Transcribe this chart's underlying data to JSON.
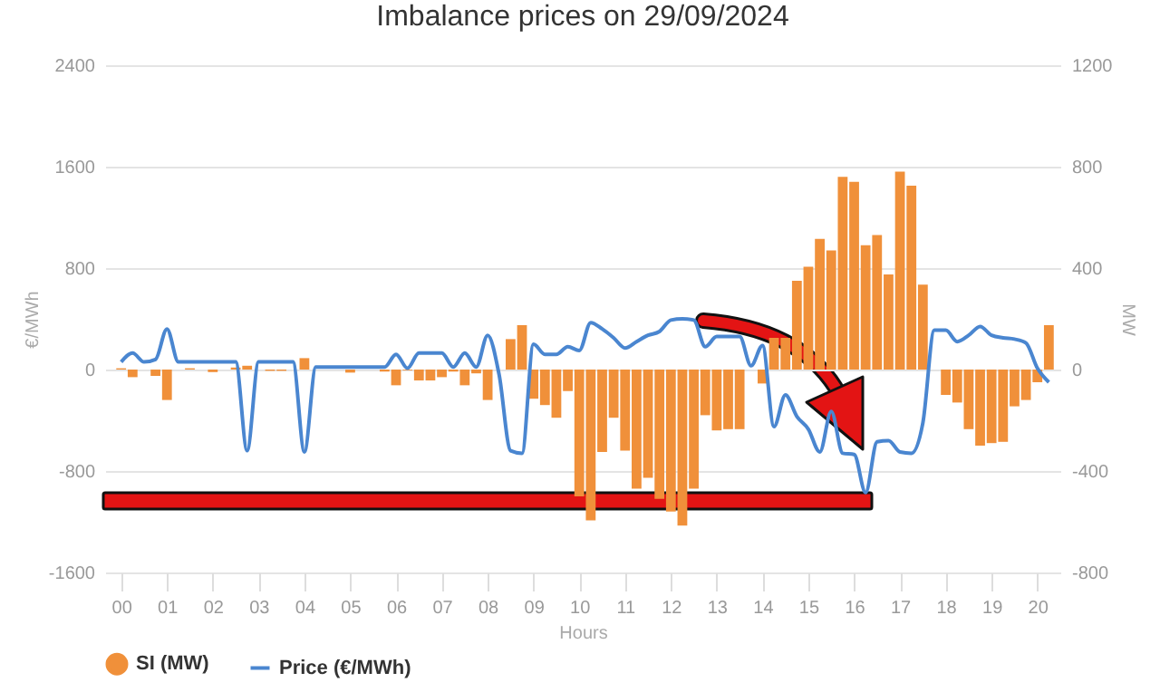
{
  "chart_data": {
    "type": "bar",
    "title": "Imbalance prices on 29/09/2024",
    "xlabel": "Hours",
    "ylabel": "€/MWh",
    "y2label": "MW",
    "x": [
      0,
      0.25,
      0.5,
      0.75,
      1,
      1.25,
      1.5,
      1.75,
      2,
      2.25,
      2.5,
      2.75,
      3,
      3.25,
      3.5,
      3.75,
      4,
      4.25,
      4.5,
      4.75,
      5,
      5.25,
      5.5,
      5.75,
      6,
      6.25,
      6.5,
      6.75,
      7,
      7.25,
      7.5,
      7.75,
      8,
      8.25,
      8.5,
      8.75,
      9,
      9.25,
      9.5,
      9.75,
      10,
      10.25,
      10.5,
      10.75,
      11,
      11.25,
      11.5,
      11.75,
      12,
      12.25,
      12.5,
      12.75,
      13,
      13.25,
      13.5,
      13.75,
      14,
      14.25,
      14.5,
      14.75,
      15,
      15.25,
      15.5,
      15.75,
      16,
      16.25,
      16.5,
      16.75,
      17,
      17.25,
      17.5,
      17.75,
      18,
      18.25,
      18.5,
      18.75,
      19,
      19.25,
      19.5,
      19.75,
      20,
      20.25
    ],
    "series": [
      {
        "name": "SI (MW)",
        "axis": "y2",
        "color": "#f0903a",
        "values": [
          5,
          -30,
          0,
          -25,
          -120,
          0,
          5,
          0,
          -10,
          0,
          8,
          15,
          0,
          -5,
          -5,
          0,
          45,
          0,
          0,
          0,
          -12,
          0,
          0,
          -8,
          -62,
          -3,
          -43,
          -43,
          -30,
          -8,
          -62,
          -15,
          -120,
          0,
          120,
          175,
          -115,
          -140,
          -190,
          -85,
          -500,
          -595,
          -325,
          -190,
          -320,
          -470,
          -427,
          -510,
          -560,
          -615,
          -470,
          -180,
          -240,
          -235,
          -235,
          0,
          -55,
          125,
          125,
          350,
          405,
          515,
          470,
          760,
          740,
          490,
          530,
          375,
          780,
          725,
          335,
          0,
          -100,
          -130,
          -235,
          -300,
          -290,
          -285,
          -145,
          -120,
          -50,
          175
        ]
      },
      {
        "name": "Price (€/MWh)",
        "type": "line",
        "color": "#4a86d0",
        "values": [
          60,
          130,
          60,
          80,
          320,
          60,
          60,
          60,
          60,
          60,
          60,
          -640,
          60,
          60,
          60,
          60,
          -650,
          20,
          20,
          20,
          20,
          20,
          20,
          20,
          120,
          10,
          130,
          130,
          130,
          20,
          130,
          20,
          270,
          -40,
          -640,
          -660,
          200,
          120,
          120,
          180,
          150,
          370,
          320,
          250,
          170,
          220,
          270,
          300,
          390,
          400,
          390,
          180,
          260,
          260,
          260,
          30,
          190,
          -450,
          -200,
          -370,
          -470,
          -650,
          -330,
          -660,
          -670,
          -970,
          -570,
          -560,
          -650,
          -660,
          -420,
          310,
          310,
          220,
          270,
          340,
          270,
          250,
          240,
          210,
          10,
          -100
        ]
      }
    ],
    "xlim": [
      -0.35,
      20.5
    ],
    "xticks": [
      {
        "value": 0,
        "label": "00"
      },
      {
        "value": 1,
        "label": "01"
      },
      {
        "value": 2,
        "label": "02"
      },
      {
        "value": 3,
        "label": "03"
      },
      {
        "value": 4,
        "label": "04"
      },
      {
        "value": 5,
        "label": "05"
      },
      {
        "value": 6,
        "label": "06"
      },
      {
        "value": 7,
        "label": "07"
      },
      {
        "value": 8,
        "label": "08"
      },
      {
        "value": 9,
        "label": "09"
      },
      {
        "value": 10,
        "label": "10"
      },
      {
        "value": 11,
        "label": "11"
      },
      {
        "value": 12,
        "label": "12"
      },
      {
        "value": 13,
        "label": "13"
      },
      {
        "value": 14,
        "label": "14"
      },
      {
        "value": 15,
        "label": "15"
      },
      {
        "value": 16,
        "label": "16"
      },
      {
        "value": 17,
        "label": "17"
      },
      {
        "value": 18,
        "label": "18"
      },
      {
        "value": 19,
        "label": "19"
      },
      {
        "value": 20,
        "label": "20"
      }
    ],
    "ylim": [
      -1600,
      2400
    ],
    "yticks": [
      -1600,
      -800,
      0,
      800,
      1600,
      2400
    ],
    "y2lim": [
      -800,
      1200
    ],
    "y2ticks": [
      -800,
      -400,
      0,
      400,
      800,
      1200
    ],
    "grid": "y",
    "legend": "bottom"
  }
}
